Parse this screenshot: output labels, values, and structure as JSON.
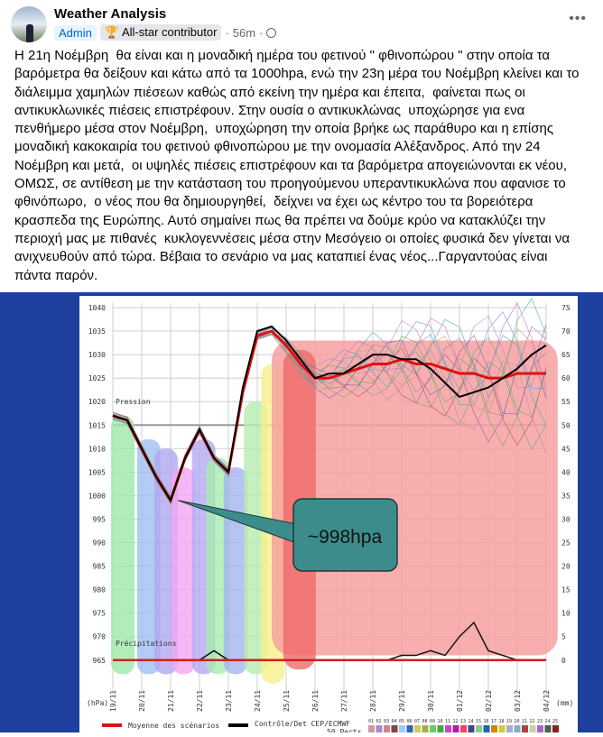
{
  "post": {
    "author": "Weather Analysis",
    "badges": [
      "Admin",
      "All-star contributor"
    ],
    "time": "56m",
    "privacy_icon": "globe-icon",
    "more_icon": "more-options-icon",
    "text_lines": [
      "Η 21η Νοέμβρη  θα είναι και η μοναδική ημέρα του φετινού \" φθινοπώρου \" στην οποία τα",
      "βαρόμετρα θα δείξουν και κάτω από τα 1000hpa, ενώ την 23η μέρα του Νοέμβρη κλείνει και το",
      "διάλειμμα χαμηλών πιέσεων καθώς από εκείνη την ημέρα και έπειτα,  φαίνεται πως οι",
      "αντικυκλωνικές πιέσεις επιστρέφουν. Στην ουσία ο αντικυκλώνας  υποχώρησε για ενα",
      "πενθήμερο μέσα στον Νοέμβρη,  υποχώρηση την οποία βρήκε ως παράθυρο και η επίσης",
      "μοναδική κακοκαιρία του φετινού φθινοπώρου με την ονομασία Αλέξανδρος. Από την 24",
      "Νοέμβρη και μετά,  οι υψηλές πιέσεις επιστρέφουν και τα βαρόμετρα απογειώνονται εκ νέου,",
      "ΟΜΩΣ, σε αντίθεση με την κατάσταση του προηγούμενου υπεραντικυκλώνα που αφανισε το",
      "φθινόπωρο,  ο νέος που θα δημιουργηθεί,  δείχνει να έχει ως κέντρο του τα βορειότερα",
      "κρασπεδα της Ευρώπης. Αυτό σημαίνει πως θα πρέπει να δούμε κρύο να κατακλύζει την",
      "περιοχή μας με πιθανές  κυκλογεννέσεις μέσα στην Μεσόγειο οι οποίες φυσικά δεν γίνεται να",
      "ανιχνευθούν από τώρα. Βέβαια το σενάριο να μας καταπιεί ένας νέος...Γαργαντούας είναι",
      "πάντα παρόν."
    ]
  },
  "chart_data": {
    "type": "line",
    "left_axis_unit": "(hPa)",
    "right_axis_unit": "(mm)",
    "y_ticks": [
      1040,
      1035,
      1030,
      1025,
      1020,
      1015,
      1010,
      1005,
      1000,
      995,
      990,
      985,
      980,
      975,
      970,
      965
    ],
    "right_ticks": [
      75,
      70,
      65,
      60,
      55,
      50,
      45,
      40,
      35,
      30,
      25,
      20,
      15,
      10,
      5,
      0
    ],
    "ylim": [
      965,
      1040
    ],
    "x_ticks": [
      "19/11",
      "20/11",
      "21/11",
      "22/11",
      "23/11",
      "24/11",
      "25/11",
      "26/11",
      "27/11",
      "28/11",
      "29/11",
      "30/11",
      "01/12",
      "02/12",
      "03/12",
      "04/12"
    ],
    "labels": {
      "pressure": "Pression",
      "precip": "Précipitations"
    },
    "annotation": "~998hpa",
    "legend": {
      "mean": "Moyenne des scénarios",
      "control": "Contrôle/Det CEP/ECMWF",
      "perts": "50 Perts",
      "pert_ids": [
        "01",
        "02",
        "03",
        "04",
        "05",
        "06",
        "07",
        "08",
        "09",
        "10",
        "11",
        "12",
        "13",
        "14",
        "15",
        "16",
        "17",
        "18",
        "19",
        "20",
        "21",
        "22",
        "23",
        "24",
        "25"
      ]
    },
    "series": [
      {
        "name": "Moyenne des scénarios",
        "color": "#e01010",
        "x": [
          0,
          0.5,
          1,
          1.5,
          2,
          2.5,
          3,
          3.5,
          4,
          4.5,
          5,
          5.5,
          6,
          6.5,
          7,
          7.5,
          8,
          8.5,
          9,
          9.5,
          10,
          10.5,
          11,
          11.5,
          12,
          12.5,
          13,
          13.5,
          14,
          14.5,
          15
        ],
        "y": [
          1017,
          1016,
          1010,
          1004,
          999,
          1008,
          1014,
          1008,
          1005,
          1022,
          1034,
          1035,
          1032,
          1028,
          1025,
          1025,
          1026,
          1027,
          1028,
          1028,
          1029,
          1028,
          1028,
          1027,
          1026,
          1026,
          1025,
          1025,
          1026,
          1026,
          1026
        ]
      },
      {
        "name": "Contrôle/Det CEP/ECMWF",
        "color": "#000000",
        "x": [
          0,
          0.5,
          1,
          1.5,
          2,
          2.5,
          3,
          3.5,
          4,
          4.5,
          5,
          5.5,
          6,
          6.5,
          7,
          7.5,
          8,
          8.5,
          9,
          9.5,
          10,
          10.5,
          11,
          11.5,
          12,
          12.5,
          13,
          13.5,
          14,
          14.5,
          15
        ],
        "y": [
          1017,
          1016,
          1010,
          1004,
          999,
          1008,
          1014,
          1008,
          1005,
          1023,
          1035,
          1036,
          1033,
          1029,
          1025,
          1026,
          1026,
          1028,
          1030,
          1030,
          1029,
          1029,
          1027,
          1024,
          1021,
          1022,
          1023,
          1025,
          1027,
          1030,
          1032
        ]
      }
    ],
    "control_precip_mm": [
      0,
      0,
      0,
      0,
      0,
      0,
      0,
      2,
      0,
      0,
      0,
      0,
      0,
      0,
      0,
      0,
      0,
      0,
      0,
      0,
      1,
      1,
      2,
      1,
      5,
      8,
      2,
      1,
      0,
      0,
      0
    ]
  }
}
